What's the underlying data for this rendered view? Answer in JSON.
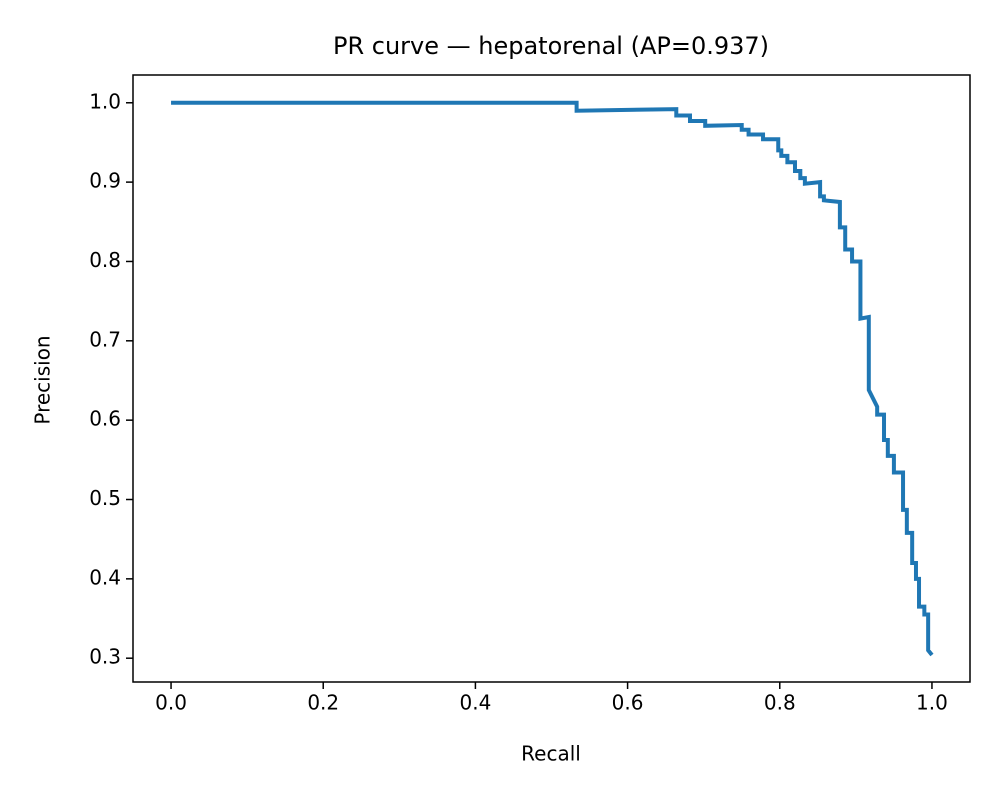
{
  "chart_data": {
    "type": "line",
    "title": "PR curve — hepatorenal (AP=0.937)",
    "x_label": "Recall",
    "y_label": "Precision",
    "xlim": [
      -0.05,
      1.05
    ],
    "ylim": [
      0.27,
      1.035
    ],
    "xticks": [
      {
        "value": 0,
        "label": "0.0"
      },
      0.2,
      0.4,
      0.6,
      0.8,
      {
        "value": 1,
        "label": "1.0"
      }
    ],
    "yticks": [
      0.3,
      0.4,
      0.5,
      0.6,
      0.7,
      0.8,
      0.9,
      {
        "value": 1,
        "label": "1.0"
      }
    ],
    "grid": false,
    "series": [
      {
        "color": "#1f77b4",
        "x": [
          0,
          0.533,
          0.533,
          0.664,
          0.664,
          0.682,
          0.682,
          0.702,
          0.702,
          0.75,
          0.75,
          0.759,
          0.759,
          0.778,
          0.778,
          0.798,
          0.798,
          0.802,
          0.802,
          0.81,
          0.81,
          0.82,
          0.82,
          0.827,
          0.827,
          0.833,
          0.833,
          0.853,
          0.853,
          0.858,
          0.858,
          0.879,
          0.879,
          0.886,
          0.886,
          0.895,
          0.895,
          0.906,
          0.906,
          0.917,
          0.917,
          0.928,
          0.928,
          0.937,
          0.937,
          0.942,
          0.942,
          0.95,
          0.95,
          0.962,
          0.962,
          0.967,
          0.967,
          0.974,
          0.974,
          0.979,
          0.979,
          0.983,
          0.983,
          0.99,
          0.99,
          0.995,
          0.995,
          1.0
        ],
        "values": [
          1.0,
          1.0,
          0.99,
          0.992,
          0.984,
          0.984,
          0.977,
          0.977,
          0.971,
          0.972,
          0.966,
          0.966,
          0.96,
          0.96,
          0.954,
          0.954,
          0.94,
          0.94,
          0.933,
          0.933,
          0.925,
          0.925,
          0.914,
          0.914,
          0.905,
          0.905,
          0.898,
          0.9,
          0.882,
          0.882,
          0.877,
          0.875,
          0.843,
          0.843,
          0.815,
          0.815,
          0.8,
          0.8,
          0.728,
          0.73,
          0.638,
          0.617,
          0.607,
          0.607,
          0.575,
          0.575,
          0.555,
          0.555,
          0.534,
          0.534,
          0.487,
          0.487,
          0.458,
          0.458,
          0.42,
          0.42,
          0.4,
          0.4,
          0.365,
          0.365,
          0.355,
          0.355,
          0.31,
          0.304
        ]
      }
    ]
  }
}
